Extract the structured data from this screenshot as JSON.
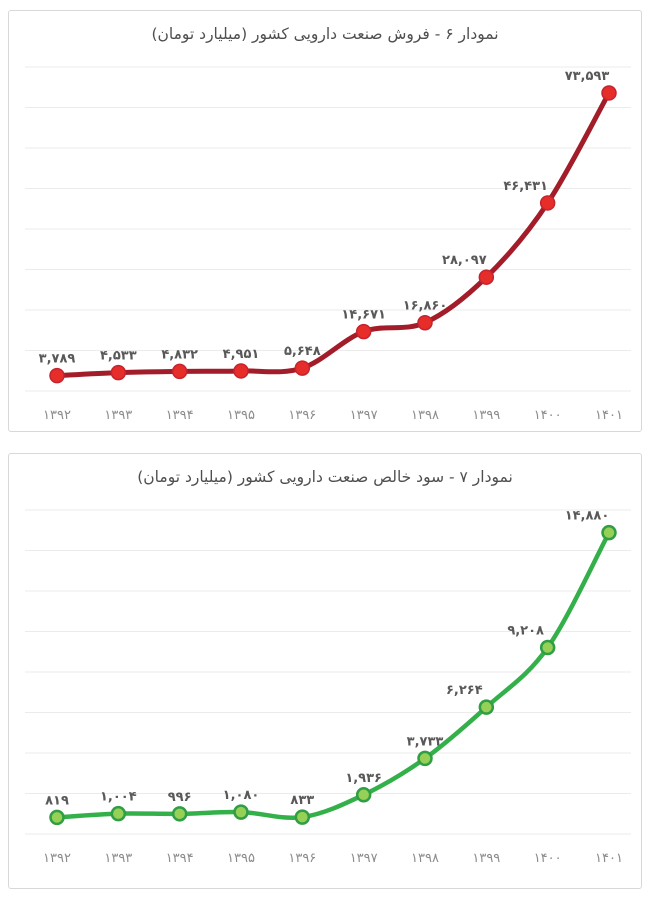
{
  "chart_data": [
    {
      "type": "line",
      "title": "نمودار ۶ - فروش صنعت دارویی کشور (میلیارد تومان)",
      "categories": [
        "۱۳۹۲",
        "۱۳۹۳",
        "۱۳۹۴",
        "۱۳۹۵",
        "۱۳۹۶",
        "۱۳۹۷",
        "۱۳۹۸",
        "۱۳۹۹",
        "۱۴۰۰",
        "۱۴۰۱"
      ],
      "values": [
        3789,
        4533,
        4832,
        4951,
        5648,
        14671,
        16860,
        28097,
        46431,
        73593
      ],
      "value_labels": [
        "۳,۷۸۹",
        "۴,۵۳۳",
        "۴,۸۳۲",
        "۴,۹۵۱",
        "۵,۶۴۸",
        "۱۴,۶۷۱",
        "۱۶,۸۶۰",
        "۲۸,۰۹۷",
        "۴۶,۴۳۱",
        "۷۳,۵۹۳"
      ],
      "xlabel": "",
      "ylabel": "",
      "ylim": [
        0,
        80000
      ],
      "grid": true,
      "gridline_count": 9,
      "legend": "none",
      "line_color": "#a21d29",
      "marker_fill": "#e62d29",
      "marker_stroke": "#c32430",
      "line_width": 5,
      "marker_radius": 7,
      "marker_stroke_width": 1.5
    },
    {
      "type": "line",
      "title": "نمودار ۷ - سود خالص صنعت دارویی کشور (میلیارد تومان)",
      "categories": [
        "۱۳۹۲",
        "۱۳۹۳",
        "۱۳۹۴",
        "۱۳۹۵",
        "۱۳۹۶",
        "۱۳۹۷",
        "۱۳۹۸",
        "۱۳۹۹",
        "۱۴۰۰",
        "۱۴۰۱"
      ],
      "values": [
        819,
        1004,
        996,
        1080,
        833,
        1936,
        3733,
        6264,
        9208,
        14880
      ],
      "value_labels": [
        "۸۱۹",
        "۱,۰۰۴",
        "۹۹۶",
        "۱,۰۸۰",
        "۸۳۳",
        "۱,۹۳۶",
        "۳,۷۳۳",
        "۶,۲۶۴",
        "۹,۲۰۸",
        "۱۴,۸۸۰"
      ],
      "xlabel": "",
      "ylabel": "",
      "ylim": [
        0,
        16000
      ],
      "grid": true,
      "gridline_count": 9,
      "legend": "none",
      "line_color": "#34b04a",
      "marker_fill": "#97d056",
      "marker_stroke": "#2f9e44",
      "line_width": 4.5,
      "marker_radius": 6.5,
      "marker_stroke_width": 2.5
    }
  ]
}
